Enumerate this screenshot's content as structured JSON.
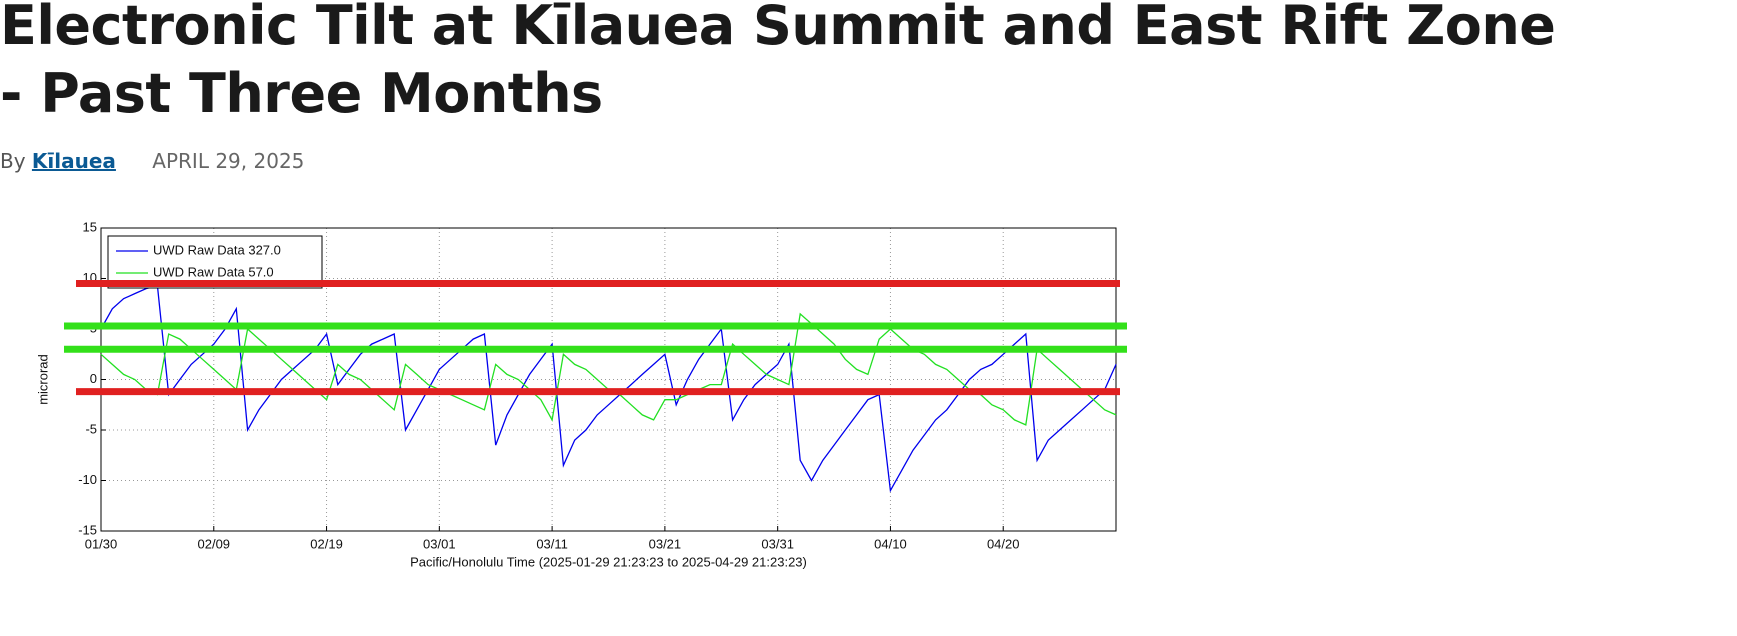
{
  "article": {
    "title": "Electronic Tilt at Kīlauea Summit and East Rift Zone - Past Three Months",
    "by": "By",
    "author": "Kīlauea",
    "date": "APRIL 29, 2025"
  },
  "chart_data": {
    "type": "line",
    "ylabel": "microrad",
    "xlabel": "Pacific/Honolulu Time (2025-01-29 21:23:23 to 2025-04-29 21:23:23)",
    "x": [
      "01/30",
      "01/31",
      "02/01",
      "02/02",
      "02/03",
      "02/04",
      "02/05",
      "02/06",
      "02/07",
      "02/08",
      "02/09",
      "02/10",
      "02/11",
      "02/12",
      "02/13",
      "02/14",
      "02/15",
      "02/16",
      "02/17",
      "02/18",
      "02/19",
      "02/20",
      "02/21",
      "02/22",
      "02/23",
      "02/24",
      "02/25",
      "02/26",
      "02/27",
      "02/28",
      "03/01",
      "03/02",
      "03/03",
      "03/04",
      "03/05",
      "03/06",
      "03/07",
      "03/08",
      "03/09",
      "03/10",
      "03/11",
      "03/12",
      "03/13",
      "03/14",
      "03/15",
      "03/16",
      "03/17",
      "03/18",
      "03/19",
      "03/20",
      "03/21",
      "03/22",
      "03/23",
      "03/24",
      "03/25",
      "03/26",
      "03/27",
      "03/28",
      "03/29",
      "03/30",
      "03/31",
      "04/01",
      "04/02",
      "04/03",
      "04/04",
      "04/05",
      "04/06",
      "04/07",
      "04/08",
      "04/09",
      "04/10",
      "04/11",
      "04/12",
      "04/13",
      "04/14",
      "04/15",
      "04/16",
      "04/17",
      "04/18",
      "04/19",
      "04/20",
      "04/21",
      "04/22",
      "04/23",
      "04/24",
      "04/25",
      "04/26",
      "04/27",
      "04/28",
      "04/29",
      "04/30"
    ],
    "series": [
      {
        "name": "UWD Raw Data 327.0",
        "color": "#0000ee",
        "values": [
          5,
          7,
          8,
          8.5,
          9,
          9.3,
          -1.5,
          0,
          1.5,
          2.5,
          3.5,
          5,
          7,
          -5,
          -3,
          -1.5,
          0,
          1,
          2,
          3,
          4.5,
          -0.5,
          1,
          2.5,
          3.5,
          4,
          4.5,
          -5,
          -3,
          -1,
          1,
          2,
          3,
          4,
          4.5,
          -6.5,
          -3.5,
          -1.5,
          0.5,
          2,
          3.5,
          -8.5,
          -6,
          -5,
          -3.5,
          -2.5,
          -1.5,
          -0.5,
          0.5,
          1.5,
          2.5,
          -2.5,
          0,
          2,
          3.5,
          5,
          -4,
          -2,
          -0.5,
          0.5,
          1.5,
          3.5,
          -8,
          -10,
          -8,
          -6.5,
          -5,
          -3.5,
          -2,
          -1.5,
          -11,
          -9,
          -7,
          -5.5,
          -4,
          -3,
          -1.5,
          0,
          1,
          1.5,
          2.5,
          3.5,
          4.5,
          -8,
          -6,
          -5,
          -4,
          -3,
          -2,
          -1,
          1.5
        ]
      },
      {
        "name": "UWD Raw Data 57.0",
        "color": "#22e022",
        "values": [
          2.5,
          1.5,
          0.5,
          0,
          -1,
          -1.5,
          4.5,
          4,
          3,
          2,
          1,
          0,
          -1,
          5,
          4,
          3,
          2,
          1,
          0,
          -1,
          -2,
          1.5,
          0.5,
          0,
          -1,
          -2,
          -3,
          1.5,
          0.5,
          -0.5,
          -1,
          -1.5,
          -2,
          -2.5,
          -3,
          1.5,
          0.5,
          0,
          -1,
          -2,
          -4,
          2.5,
          1.5,
          1,
          0,
          -1,
          -1.5,
          -2.5,
          -3.5,
          -4,
          -2,
          -2,
          -1.5,
          -1,
          -0.5,
          -0.5,
          3.5,
          2.5,
          1.5,
          0.5,
          0,
          -0.5,
          6.5,
          5.5,
          4.5,
          3.5,
          2,
          1,
          0.5,
          4,
          5,
          4,
          3,
          2.5,
          1.5,
          1,
          0,
          -1,
          -1.5,
          -2.5,
          -3,
          -4,
          -4.5,
          3,
          2,
          1,
          0,
          -1,
          -2,
          -3,
          -3.5
        ]
      }
    ],
    "xlim": [
      "01/30",
      "04/30"
    ],
    "xticks": [
      "01/30",
      "02/09",
      "02/19",
      "03/01",
      "03/11",
      "03/21",
      "03/31",
      "04/10",
      "04/20"
    ],
    "ylim": [
      -15,
      15
    ],
    "yticks": [
      -15,
      -10,
      -5,
      0,
      5,
      10,
      15
    ],
    "grid": true,
    "legend": "upper left",
    "reference_lines": [
      {
        "value": 9.5,
        "color": "#e02020"
      },
      {
        "value": -1.2,
        "color": "#e02020"
      },
      {
        "value": 5.3,
        "color": "#33e01a"
      },
      {
        "value": 3.0,
        "color": "#33e01a"
      }
    ]
  }
}
